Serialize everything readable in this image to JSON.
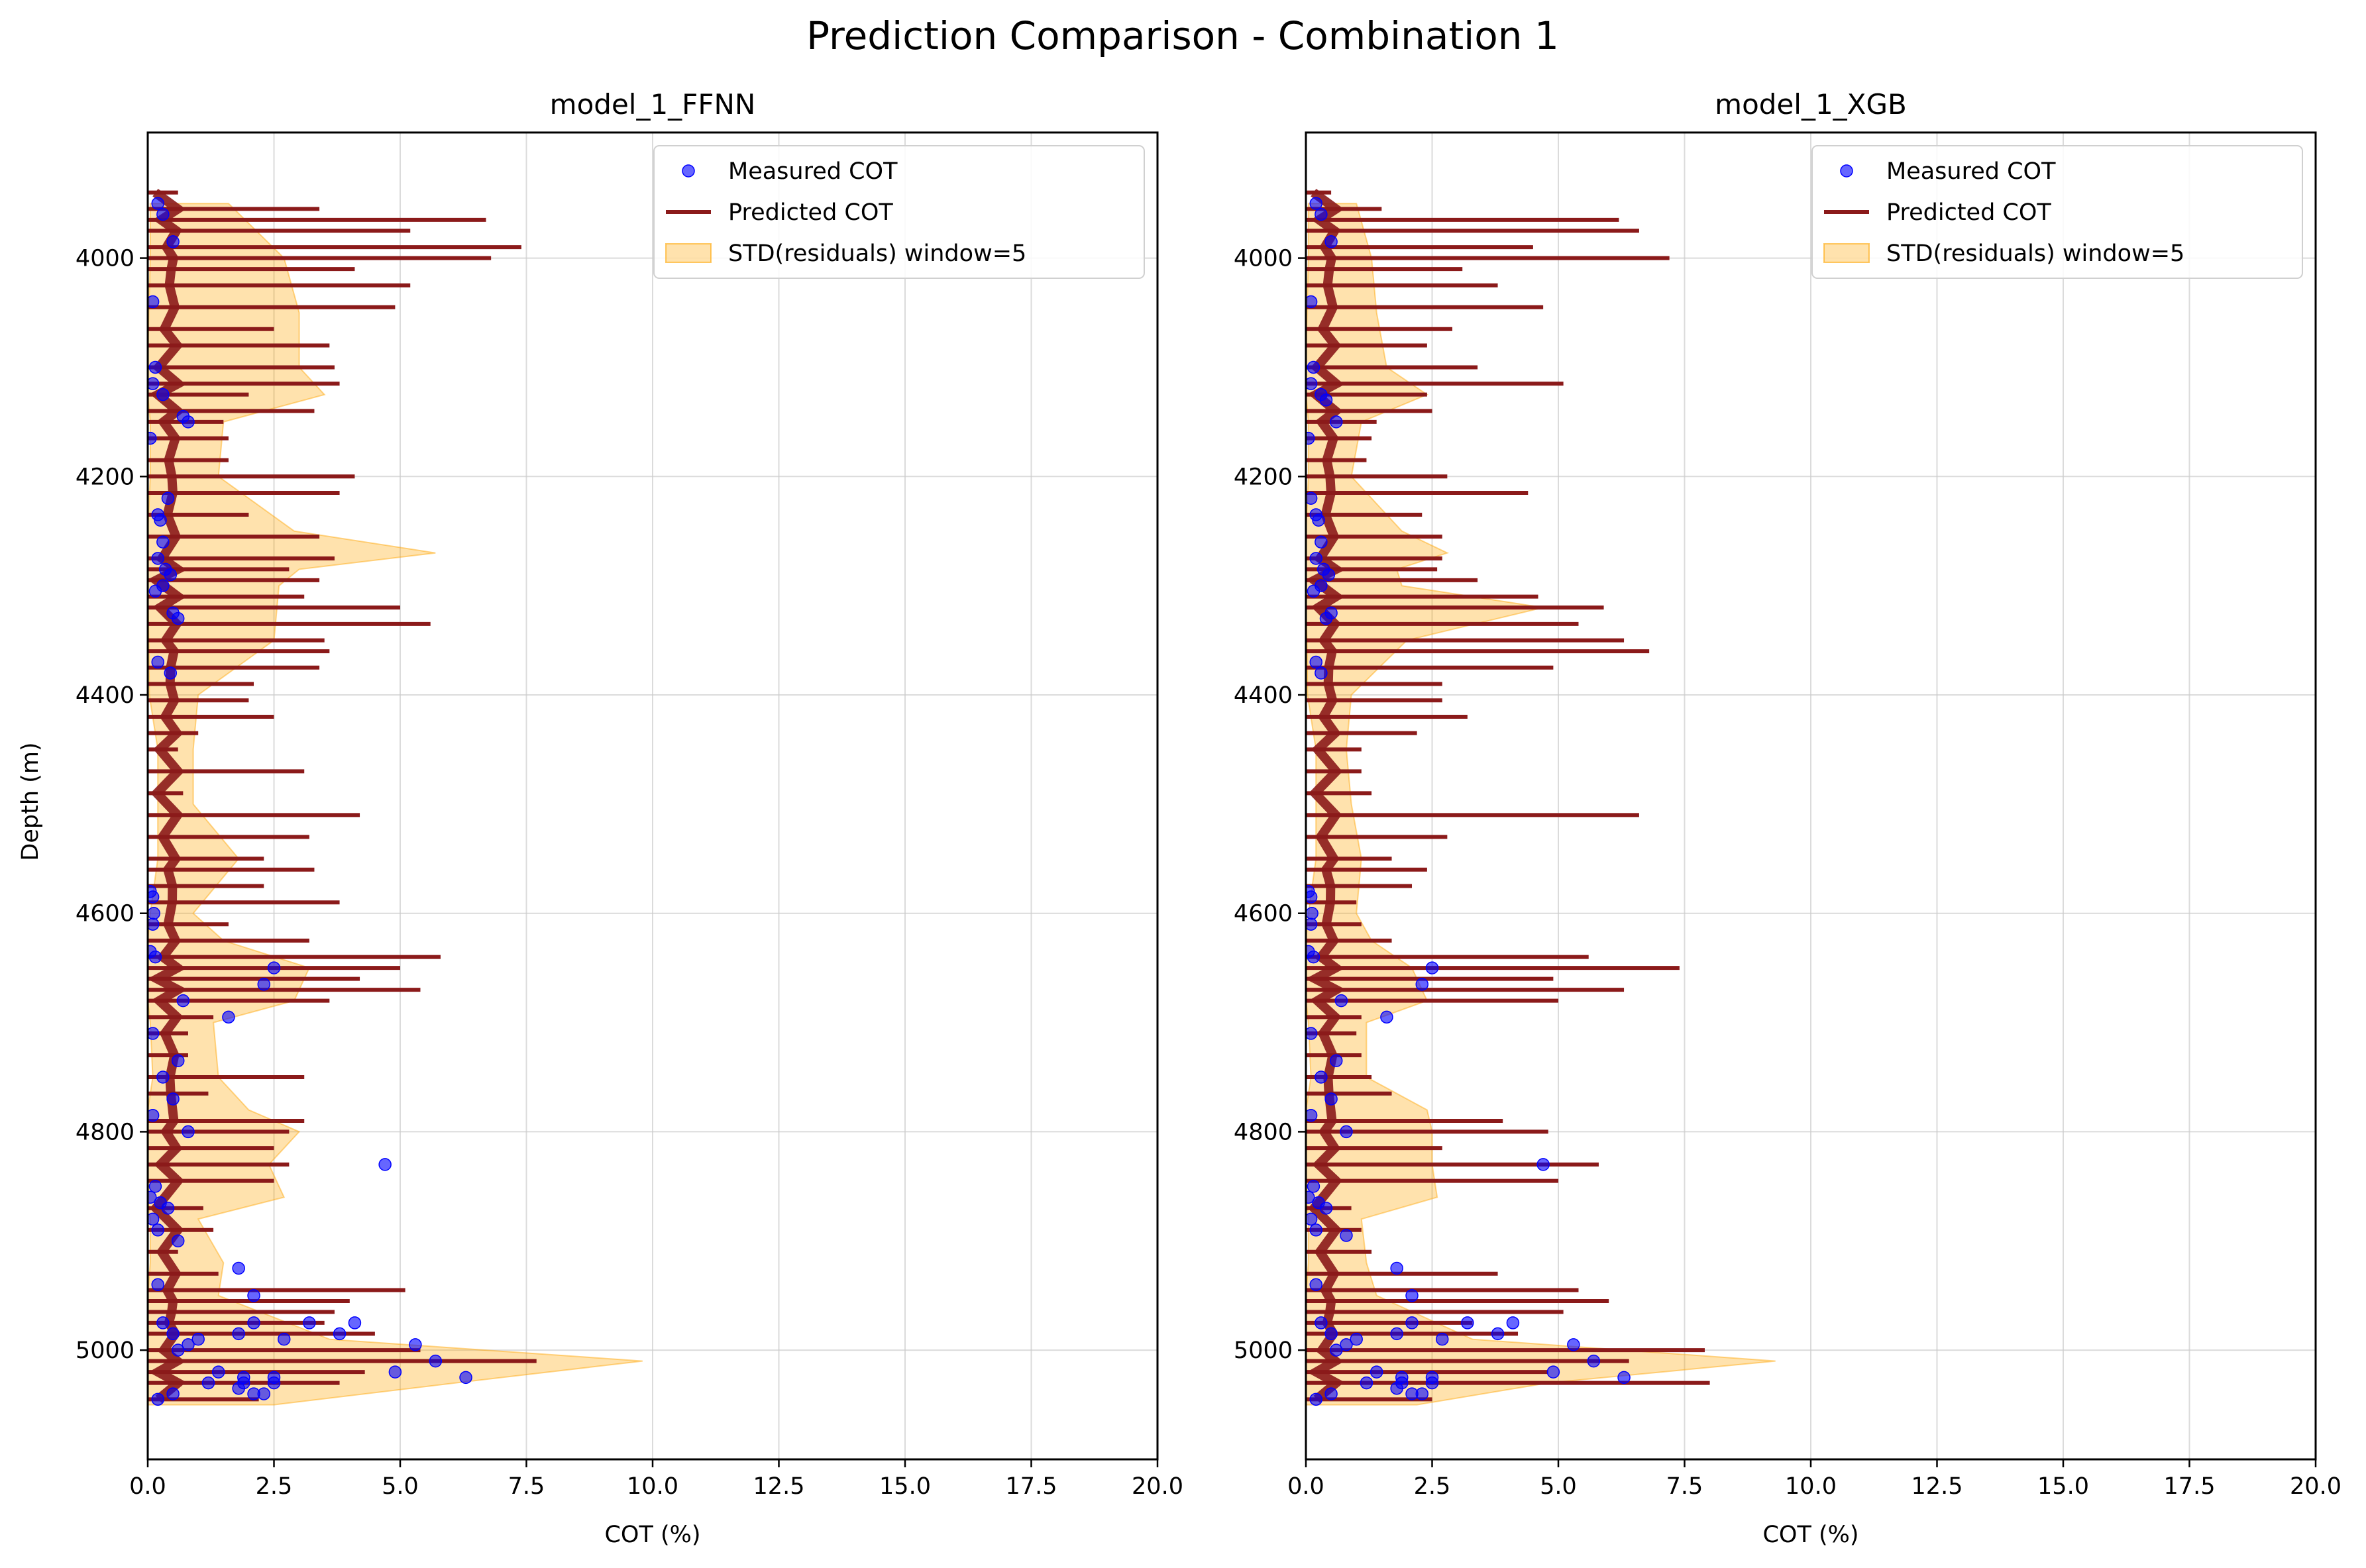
{
  "figure_title": "Prediction Comparison - Combination 1",
  "colors": {
    "measured": "#0000ff",
    "predicted": "#8b1a1a",
    "band": "#ffa500",
    "grid": "#cccccc",
    "axes": "#000000"
  },
  "chart_data": [
    {
      "type": "line",
      "title": "model_1_FFNN",
      "xlabel": "COT (%)",
      "ylabel": "Depth (m)",
      "xlim": [
        0,
        20
      ],
      "ylim": [
        5100,
        3885
      ],
      "y_inverted": true,
      "grid": true,
      "legend_position": "top-right",
      "xticks": [
        "0.0",
        "2.5",
        "5.0",
        "7.5",
        "10.0",
        "12.5",
        "15.0",
        "17.5",
        "20.0"
      ],
      "yticks": [
        "4000",
        "4200",
        "4400",
        "4600",
        "4800",
        "5000"
      ],
      "legend": [
        "Measured COT",
        "Predicted COT",
        "STD(residuals) window=5"
      ],
      "band": {
        "name": "STD(residuals) window=5",
        "depth": [
          3950,
          4000,
          4050,
          4100,
          4125,
          4150,
          4200,
          4250,
          4270,
          4285,
          4300,
          4350,
          4400,
          4450,
          4500,
          4550,
          4600,
          4625,
          4650,
          4680,
          4700,
          4750,
          4780,
          4800,
          4830,
          4860,
          4880,
          4920,
          4950,
          4990,
          5010,
          5030,
          5050
        ],
        "right": [
          1.6,
          2.7,
          3.0,
          3.0,
          3.5,
          1.5,
          1.4,
          2.9,
          5.7,
          3.0,
          2.6,
          2.5,
          1.0,
          0.9,
          0.9,
          1.8,
          0.9,
          1.5,
          3.2,
          2.9,
          1.3,
          1.4,
          2.0,
          3.0,
          2.4,
          2.7,
          1.0,
          1.5,
          1.4,
          3.6,
          9.8,
          6.1,
          2.5
        ],
        "left": [
          0.05,
          0.05,
          0.02,
          0,
          0,
          0.05,
          0.05,
          0,
          0,
          0,
          0,
          0.02,
          0.03,
          0.2,
          0.2,
          0.2,
          0.05,
          0,
          0,
          0,
          0.05,
          0.1,
          0,
          0,
          0,
          0,
          0.05,
          0.05,
          0,
          0,
          0,
          0,
          0
        ]
      },
      "predicted": {
        "name": "Predicted COT",
        "depth": [
          3940,
          3955,
          3965,
          3975,
          3990,
          4000,
          4010,
          4025,
          4045,
          4065,
          4080,
          4100,
          4115,
          4125,
          4140,
          4150,
          4165,
          4185,
          4200,
          4215,
          4235,
          4255,
          4275,
          4285,
          4295,
          4310,
          4320,
          4335,
          4350,
          4360,
          4375,
          4390,
          4405,
          4420,
          4435,
          4450,
          4470,
          4490,
          4510,
          4530,
          4550,
          4560,
          4575,
          4590,
          4610,
          4625,
          4640,
          4650,
          4660,
          4670,
          4680,
          4695,
          4710,
          4730,
          4750,
          4765,
          4790,
          4800,
          4815,
          4830,
          4845,
          4870,
          4890,
          4910,
          4930,
          4945,
          4955,
          4965,
          4975,
          4985,
          5000,
          5010,
          5020,
          5030,
          5045
        ],
        "cot": [
          0.6,
          3.4,
          6.7,
          5.2,
          7.4,
          6.8,
          4.1,
          5.2,
          4.9,
          2.5,
          3.6,
          3.7,
          3.8,
          2.0,
          3.3,
          1.5,
          1.6,
          1.6,
          4.1,
          3.8,
          2.0,
          3.4,
          3.7,
          2.8,
          3.4,
          3.1,
          5.0,
          5.6,
          3.5,
          3.6,
          3.4,
          2.1,
          2.0,
          2.5,
          1.0,
          0.6,
          3.1,
          0.7,
          4.2,
          3.2,
          2.3,
          3.3,
          2.3,
          3.8,
          1.6,
          3.2,
          5.8,
          5.0,
          4.2,
          5.4,
          3.6,
          1.3,
          0.8,
          0.8,
          3.1,
          1.2,
          3.1,
          2.8,
          2.5,
          2.8,
          2.5,
          1.1,
          1.3,
          0.6,
          1.4,
          5.1,
          4.0,
          3.7,
          3.5,
          4.5,
          5.4,
          7.7,
          4.3,
          3.8,
          2.2
        ]
      },
      "measured": {
        "name": "Measured COT",
        "cot": [
          0.2,
          0.3,
          0.5,
          0.1,
          0.15,
          0.1,
          0.3,
          0.7,
          0.8,
          0.05,
          0.4,
          0.2,
          0.25,
          0.3,
          0.2,
          0.35,
          0.45,
          0.3,
          0.15,
          0.5,
          0.6,
          0.2,
          0.45,
          0.05,
          0.1,
          0.12,
          0.1,
          0.05,
          0.15,
          2.5,
          2.3,
          0.7,
          1.6,
          0.1,
          0.6,
          0.3,
          0.5,
          0.8,
          0.1,
          4.7,
          0.15,
          0.05,
          0.25,
          0.1,
          0.4,
          0.2,
          0.6,
          1.8,
          0.2,
          2.1,
          0.3,
          0.5,
          1.0,
          1.8,
          2.1,
          2.7,
          3.2,
          4.1,
          3.8,
          0.6,
          0.8,
          1.4,
          1.9,
          2.5,
          5.3,
          5.7,
          4.9,
          6.3,
          1.2,
          1.8,
          2.3,
          2.5,
          1.9,
          2.1,
          0.2,
          0.5
        ],
        "depth": [
          3950,
          3960,
          3985,
          4040,
          4100,
          4115,
          4125,
          4145,
          4150,
          4165,
          4220,
          4235,
          4240,
          4260,
          4275,
          4285,
          4290,
          4300,
          4305,
          4325,
          4330,
          4370,
          4380,
          4580,
          4585,
          4600,
          4610,
          4635,
          4640,
          4650,
          4665,
          4680,
          4695,
          4710,
          4735,
          4750,
          4770,
          4800,
          4785,
          4830,
          4850,
          4860,
          4865,
          4880,
          4870,
          4890,
          4900,
          4925,
          4940,
          4950,
          4975,
          4985,
          4990,
          4985,
          4975,
          4990,
          4975,
          4975,
          4985,
          5000,
          4995,
          5020,
          5025,
          5030,
          4995,
          5010,
          5020,
          5025,
          5030,
          5035,
          5040,
          5025,
          5030,
          5040,
          5045,
          5040
        ]
      }
    },
    {
      "type": "line",
      "title": "model_1_XGB",
      "xlabel": "COT (%)",
      "ylabel": "",
      "xlim": [
        0,
        20
      ],
      "ylim": [
        5100,
        3885
      ],
      "y_inverted": true,
      "grid": true,
      "legend_position": "top-right",
      "xticks": [
        "0.0",
        "2.5",
        "5.0",
        "7.5",
        "10.0",
        "12.5",
        "15.0",
        "17.5",
        "20.0"
      ],
      "yticks": [
        "4000",
        "4200",
        "4400",
        "4600",
        "4800",
        "5000"
      ],
      "legend": [
        "Measured COT",
        "Predicted COT",
        "STD(residuals) window=5"
      ],
      "band": {
        "name": "STD(residuals) window=5",
        "depth": [
          3950,
          4000,
          4050,
          4100,
          4125,
          4150,
          4200,
          4250,
          4270,
          4285,
          4300,
          4320,
          4350,
          4400,
          4450,
          4500,
          4550,
          4600,
          4625,
          4650,
          4680,
          4700,
          4750,
          4780,
          4800,
          4830,
          4860,
          4880,
          4920,
          4950,
          4990,
          5010,
          5030,
          5050
        ],
        "right": [
          1.0,
          1.3,
          1.4,
          1.6,
          2.4,
          1.1,
          0.9,
          1.9,
          2.8,
          1.8,
          1.9,
          4.7,
          2.0,
          0.9,
          0.8,
          0.9,
          1.1,
          1.0,
          1.3,
          2.1,
          2.4,
          1.2,
          1.2,
          2.4,
          2.5,
          2.5,
          2.6,
          1.1,
          1.2,
          1.4,
          3.3,
          9.3,
          4.8,
          2.2
        ],
        "left": [
          0.05,
          0.05,
          0.02,
          0,
          0,
          0.05,
          0.05,
          0,
          0,
          0,
          0,
          0,
          0.02,
          0.03,
          0.2,
          0.2,
          0.2,
          0.05,
          0,
          0,
          0,
          0.05,
          0.1,
          0,
          0,
          0,
          0,
          0.05,
          0.05,
          0,
          0,
          0,
          0,
          0
        ]
      },
      "predicted": {
        "name": "Predicted COT",
        "depth": [
          3940,
          3955,
          3965,
          3975,
          3990,
          4000,
          4010,
          4025,
          4045,
          4065,
          4080,
          4100,
          4115,
          4125,
          4140,
          4150,
          4165,
          4185,
          4200,
          4215,
          4235,
          4255,
          4275,
          4285,
          4295,
          4310,
          4320,
          4335,
          4350,
          4360,
          4375,
          4390,
          4405,
          4420,
          4435,
          4450,
          4470,
          4490,
          4510,
          4530,
          4550,
          4560,
          4575,
          4590,
          4610,
          4625,
          4640,
          4650,
          4660,
          4670,
          4680,
          4695,
          4710,
          4730,
          4750,
          4765,
          4790,
          4800,
          4815,
          4830,
          4845,
          4870,
          4890,
          4910,
          4930,
          4945,
          4955,
          4965,
          4975,
          4985,
          5000,
          5010,
          5020,
          5030,
          5045
        ],
        "cot": [
          0.5,
          1.5,
          6.2,
          6.6,
          4.5,
          7.2,
          3.1,
          3.8,
          4.7,
          2.9,
          2.4,
          3.4,
          5.1,
          2.4,
          2.5,
          1.4,
          1.3,
          1.2,
          2.8,
          4.4,
          2.3,
          2.7,
          2.7,
          2.6,
          3.4,
          4.6,
          5.9,
          5.4,
          6.3,
          6.8,
          4.9,
          2.7,
          2.7,
          3.2,
          2.2,
          1.1,
          1.1,
          1.3,
          6.6,
          2.8,
          1.7,
          2.4,
          2.1,
          1.0,
          1.1,
          1.7,
          5.6,
          7.4,
          4.9,
          6.3,
          5.0,
          1.1,
          1.0,
          1.1,
          1.3,
          1.7,
          3.9,
          4.8,
          2.7,
          5.8,
          5.0,
          0.9,
          1.1,
          1.3,
          3.8,
          5.4,
          6.0,
          5.1,
          3.3,
          4.2,
          7.9,
          6.4,
          4.8,
          8.0,
          2.5
        ]
      },
      "measured": {
        "name": "Measured COT",
        "cot": [
          0.2,
          0.3,
          0.5,
          0.1,
          0.15,
          0.1,
          0.3,
          0.4,
          0.6,
          0.05,
          0.1,
          0.2,
          0.25,
          0.3,
          0.2,
          0.35,
          0.45,
          0.3,
          0.15,
          0.5,
          0.4,
          0.2,
          0.3,
          0.05,
          0.1,
          0.12,
          0.1,
          0.05,
          0.15,
          2.5,
          2.3,
          0.7,
          1.6,
          0.1,
          0.6,
          0.3,
          0.5,
          0.8,
          0.1,
          4.7,
          0.15,
          0.05,
          0.25,
          0.1,
          0.4,
          0.2,
          0.8,
          1.8,
          0.2,
          2.1,
          0.3,
          0.5,
          1.0,
          1.8,
          2.1,
          2.7,
          3.2,
          4.1,
          3.8,
          0.6,
          0.8,
          1.4,
          1.9,
          2.5,
          5.3,
          5.7,
          4.9,
          6.3,
          1.2,
          1.8,
          2.3,
          2.5,
          1.9,
          2.1,
          0.2,
          0.5
        ],
        "depth": [
          3950,
          3960,
          3985,
          4040,
          4100,
          4115,
          4125,
          4130,
          4150,
          4165,
          4220,
          4235,
          4240,
          4260,
          4275,
          4285,
          4290,
          4300,
          4305,
          4325,
          4330,
          4370,
          4380,
          4580,
          4585,
          4600,
          4610,
          4635,
          4640,
          4650,
          4665,
          4680,
          4695,
          4710,
          4735,
          4750,
          4770,
          4800,
          4785,
          4830,
          4850,
          4860,
          4865,
          4880,
          4870,
          4890,
          4895,
          4925,
          4940,
          4950,
          4975,
          4985,
          4990,
          4985,
          4975,
          4990,
          4975,
          4975,
          4985,
          5000,
          4995,
          5020,
          5025,
          5030,
          4995,
          5010,
          5020,
          5025,
          5030,
          5035,
          5040,
          5025,
          5030,
          5040,
          5045,
          5040
        ]
      }
    }
  ]
}
